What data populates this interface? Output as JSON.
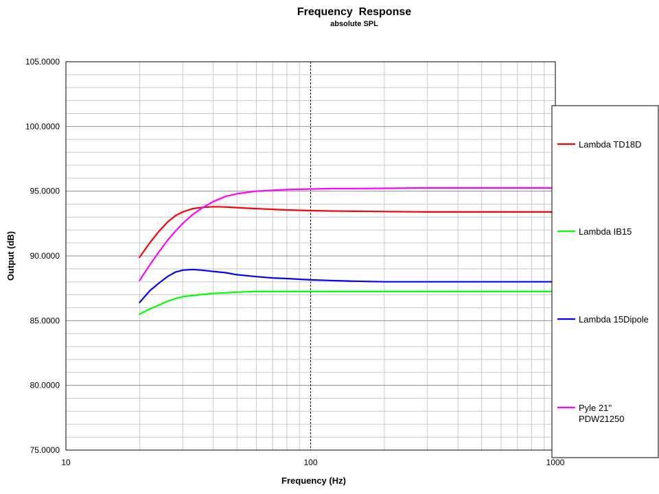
{
  "chart_data": {
    "type": "line",
    "title": "Frequency  Response",
    "subtitle": "absolute SPL",
    "xlabel": "Frequency (Hz)",
    "ylabel": "Output (dB)",
    "x_scale": "log",
    "xlim": [
      10,
      1000
    ],
    "ylim": [
      75,
      105
    ],
    "x_ticks": [
      "10",
      "100",
      "1000"
    ],
    "y_ticks": [
      "75.0000",
      "80.0000",
      "85.0000",
      "90.0000",
      "95.0000",
      "100.0000",
      "105.0000"
    ],
    "grid": true,
    "legend_position": "right",
    "series": [
      {
        "name": "Lambda TD18D",
        "color": "#ff0000",
        "x": [
          20,
          22,
          24,
          26,
          28,
          30,
          33,
          36,
          40,
          45,
          50,
          60,
          70,
          80,
          100,
          120,
          150,
          200,
          300,
          500,
          1000
        ],
        "y": [
          89.9,
          91.0,
          91.9,
          92.6,
          93.1,
          93.4,
          93.65,
          93.75,
          93.8,
          93.78,
          93.73,
          93.65,
          93.6,
          93.55,
          93.5,
          93.47,
          93.45,
          93.43,
          93.4,
          93.4,
          93.4
        ]
      },
      {
        "name": "Lambda IB15",
        "color": "#00ff00",
        "x": [
          20,
          22,
          24,
          26,
          28,
          30,
          35,
          40,
          50,
          60,
          80,
          100,
          200,
          500,
          1000
        ],
        "y": [
          85.5,
          85.9,
          86.2,
          86.5,
          86.7,
          86.85,
          87.0,
          87.1,
          87.2,
          87.25,
          87.25,
          87.25,
          87.25,
          87.25,
          87.25
        ]
      },
      {
        "name": "Lambda 15Dipole",
        "color": "#0000ff",
        "x": [
          20,
          22,
          24,
          26,
          28,
          30,
          33,
          36,
          40,
          45,
          50,
          60,
          70,
          80,
          100,
          120,
          150,
          200,
          300,
          500,
          1000
        ],
        "y": [
          86.4,
          87.3,
          87.9,
          88.4,
          88.75,
          88.9,
          88.95,
          88.9,
          88.8,
          88.7,
          88.55,
          88.4,
          88.3,
          88.25,
          88.15,
          88.1,
          88.05,
          88.0,
          88.0,
          88.0,
          88.0
        ]
      },
      {
        "name": "Pyle 21\" PDW21250",
        "label_lines": [
          "Pyle 21\"",
          "PDW21250"
        ],
        "color": "#ff00ff",
        "x": [
          20,
          22,
          24,
          26,
          28,
          30,
          33,
          36,
          40,
          45,
          50,
          60,
          70,
          80,
          100,
          120,
          150,
          200,
          300,
          500,
          1000
        ],
        "y": [
          88.1,
          89.3,
          90.3,
          91.2,
          91.9,
          92.5,
          93.2,
          93.7,
          94.2,
          94.6,
          94.8,
          95.0,
          95.07,
          95.12,
          95.17,
          95.2,
          95.2,
          95.22,
          95.25,
          95.25,
          95.25
        ]
      }
    ]
  }
}
